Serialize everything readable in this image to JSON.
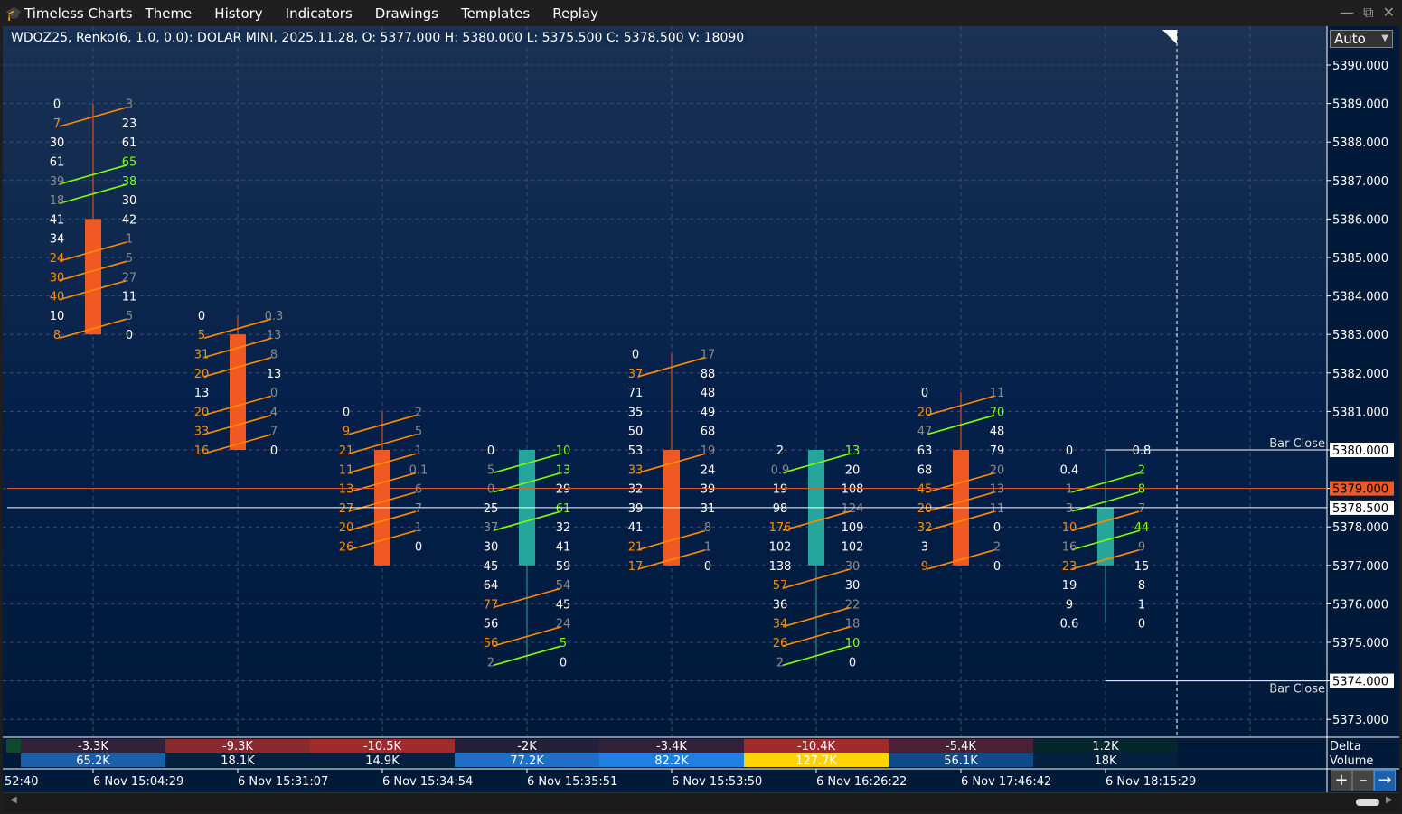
{
  "app": {
    "title": "Timeless Charts",
    "menu": [
      "Theme",
      "History",
      "Indicators",
      "Drawings",
      "Templates",
      "Replay"
    ]
  },
  "info": "WDOZ25, Renko(6, 1.0, 0.0): DOLAR MINI, 2025.11.28, O: 5377.000 H: 5380.000 L: 5375.500 C: 5378.500 V: 18090",
  "scale_mode": "Auto",
  "colors": {
    "bear": "#f05a22",
    "bull": "#26a69a",
    "bid_strong": "#ff8c00",
    "ask_strong": "#7fff00",
    "weak": "#8a8a8a",
    "normal": "#ffffff",
    "last_price": "#f05a22"
  },
  "price_axis": {
    "ticks": [
      "5390.000",
      "5389.000",
      "5388.000",
      "5387.000",
      "5386.000",
      "5385.000",
      "5384.000",
      "5383.000",
      "5382.000",
      "5381.000",
      "5380.000",
      "5379.000",
      "5378.000",
      "5377.000",
      "5376.000",
      "5375.000",
      "5374.000",
      "5373.000"
    ],
    "marker_high": "5380.000",
    "marker_last": "5379.000",
    "marker_close": "5378.500",
    "marker_low": "5374.000",
    "bar_close_label": "Bar Close"
  },
  "time_axis": {
    "first": "52:40",
    "labels": [
      "6 Nov 15:04:29",
      "6 Nov 15:31:07",
      "6 Nov 15:34:54",
      "6 Nov 15:35:51",
      "6 Nov 15:53:50",
      "6 Nov 16:26:22",
      "6 Nov 17:46:42",
      "6 Nov 18:15:29"
    ]
  },
  "panels": {
    "delta_label": "Delta",
    "volume_label": "Volume",
    "delta": [
      {
        "v": "-3.3K",
        "c": "#33213a"
      },
      {
        "v": "-9.3K",
        "c": "#8b2a2e"
      },
      {
        "v": "-10.5K",
        "c": "#a12a2c"
      },
      {
        "v": "-2K",
        "c": "#261f3a"
      },
      {
        "v": "-3.4K",
        "c": "#33213a"
      },
      {
        "v": "-10.4K",
        "c": "#a12a2c"
      },
      {
        "v": "-5.4K",
        "c": "#4a2035"
      },
      {
        "v": "1.2K",
        "c": "#06262e"
      }
    ],
    "volume": [
      {
        "v": "65.2K",
        "c": "#1a5fa8"
      },
      {
        "v": "18.1K",
        "c": "#03213f"
      },
      {
        "v": "14.9K",
        "c": "#03213f"
      },
      {
        "v": "77.2K",
        "c": "#1c70c8"
      },
      {
        "v": "82.2K",
        "c": "#1e80e0"
      },
      {
        "v": "127.7K",
        "c": "#ffd400"
      },
      {
        "v": "56.1K",
        "c": "#0f4a8a"
      },
      {
        "v": "18K",
        "c": "#03213f"
      }
    ]
  },
  "chart_data": {
    "type": "footprint",
    "price_range": [
      5373,
      5390
    ],
    "tick": 0.5,
    "last_price": 5379.0,
    "close_price": 5378.5,
    "bar_close_levels": [
      5380,
      5374
    ],
    "color_codes": {
      "w": "normal",
      "o": "bid_strong",
      "n": "ask_strong",
      "g": "weak"
    },
    "bars": [
      {
        "time": "6 Nov 15:04:29",
        "open": 5386,
        "close": 5383,
        "high": 5389,
        "low": 5383,
        "rows": [
          [
            "0",
            "3",
            "w",
            "g"
          ],
          [
            "7",
            "23",
            "o",
            "w"
          ],
          [
            "30",
            "61",
            "w",
            "w"
          ],
          [
            "61",
            "65",
            "w",
            "n"
          ],
          [
            "39",
            "38",
            "g",
            "n"
          ],
          [
            "18",
            "30",
            "g",
            "w"
          ],
          [
            "41",
            "42",
            "w",
            "w"
          ],
          [
            "34",
            "1",
            "w",
            "g"
          ],
          [
            "24",
            "5",
            "o",
            "g"
          ],
          [
            "30",
            "27",
            "o",
            "g"
          ],
          [
            "40",
            "11",
            "o",
            "w"
          ],
          [
            "10",
            "5",
            "w",
            "g"
          ],
          [
            "8",
            "0",
            "o",
            "w"
          ]
        ]
      },
      {
        "time": "6 Nov 15:31:07",
        "open": 5383,
        "close": 5380,
        "high": 5383.5,
        "low": 5380,
        "rows": [
          [
            "0",
            "0.3",
            "w",
            "g"
          ],
          [
            "5",
            "13",
            "o",
            "g"
          ],
          [
            "31",
            "8",
            "o",
            "g"
          ],
          [
            "20",
            "13",
            "o",
            "w"
          ],
          [
            "13",
            "0",
            "w",
            "g"
          ],
          [
            "20",
            "4",
            "o",
            "g"
          ],
          [
            "33",
            "7",
            "o",
            "g"
          ],
          [
            "16",
            "0",
            "o",
            "w"
          ]
        ]
      },
      {
        "time": "6 Nov 15:34:54",
        "open": 5380,
        "close": 5377,
        "high": 5381,
        "low": 5377,
        "rows": [
          [
            "0",
            "2",
            "w",
            "g"
          ],
          [
            "9",
            "5",
            "o",
            "g"
          ],
          [
            "21",
            "1",
            "o",
            "g"
          ],
          [
            "11",
            "0.1",
            "o",
            "g"
          ],
          [
            "13",
            "6",
            "o",
            "g"
          ],
          [
            "27",
            "7",
            "o",
            "g"
          ],
          [
            "20",
            "1",
            "o",
            "g"
          ],
          [
            "26",
            "0",
            "o",
            "w"
          ]
        ]
      },
      {
        "time": "6 Nov 15:35:51",
        "open": 5377,
        "close": 5380,
        "high": 5380,
        "low": 5374.5,
        "rows": [
          [
            "0",
            "10",
            "w",
            "n"
          ],
          [
            "5",
            "13",
            "g",
            "n"
          ],
          [
            "0",
            "29",
            "g",
            "w"
          ],
          [
            "25",
            "61",
            "w",
            "n"
          ],
          [
            "37",
            "32",
            "g",
            "w"
          ],
          [
            "30",
            "41",
            "w",
            "w"
          ],
          [
            "45",
            "59",
            "w",
            "w"
          ],
          [
            "64",
            "54",
            "w",
            "g"
          ],
          [
            "77",
            "45",
            "o",
            "w"
          ],
          [
            "56",
            "24",
            "w",
            "g"
          ],
          [
            "56",
            "5",
            "o",
            "n"
          ],
          [
            "2",
            "0",
            "g",
            "w"
          ]
        ]
      },
      {
        "time": "6 Nov 15:53:50",
        "open": 5380,
        "close": 5377,
        "high": 5382.5,
        "low": 5377,
        "rows": [
          [
            "0",
            "17",
            "w",
            "g"
          ],
          [
            "37",
            "88",
            "o",
            "w"
          ],
          [
            "71",
            "48",
            "w",
            "w"
          ],
          [
            "35",
            "49",
            "w",
            "w"
          ],
          [
            "50",
            "68",
            "w",
            "w"
          ],
          [
            "53",
            "19",
            "w",
            "g"
          ],
          [
            "33",
            "24",
            "o",
            "w"
          ],
          [
            "32",
            "39",
            "w",
            "w"
          ],
          [
            "39",
            "31",
            "w",
            "w"
          ],
          [
            "41",
            "8",
            "w",
            "g"
          ],
          [
            "21",
            "1",
            "o",
            "g"
          ],
          [
            "17",
            "0",
            "o",
            "w"
          ]
        ]
      },
      {
        "time": "6 Nov 16:26:22",
        "open": 5377,
        "close": 5380,
        "high": 5380,
        "low": 5374.5,
        "rows": [
          [
            "2",
            "13",
            "w",
            "n"
          ],
          [
            "0.9",
            "20",
            "g",
            "w"
          ],
          [
            "19",
            "108",
            "w",
            "w"
          ],
          [
            "98",
            "124",
            "w",
            "g"
          ],
          [
            "176",
            "109",
            "o",
            "w"
          ],
          [
            "102",
            "102",
            "w",
            "w"
          ],
          [
            "138",
            "30",
            "w",
            "g"
          ],
          [
            "57",
            "30",
            "o",
            "w"
          ],
          [
            "36",
            "22",
            "w",
            "g"
          ],
          [
            "34",
            "18",
            "o",
            "g"
          ],
          [
            "26",
            "10",
            "o",
            "n"
          ],
          [
            "2",
            "0",
            "g",
            "w"
          ]
        ]
      },
      {
        "time": "6 Nov 17:46:42",
        "open": 5380,
        "close": 5377,
        "high": 5381.5,
        "low": 5377,
        "rows": [
          [
            "0",
            "11",
            "w",
            "g"
          ],
          [
            "20",
            "70",
            "o",
            "n"
          ],
          [
            "47",
            "48",
            "g",
            "w"
          ],
          [
            "63",
            "79",
            "w",
            "w"
          ],
          [
            "68",
            "20",
            "w",
            "g"
          ],
          [
            "45",
            "13",
            "o",
            "g"
          ],
          [
            "20",
            "11",
            "o",
            "g"
          ],
          [
            "32",
            "0",
            "o",
            "w"
          ],
          [
            "3",
            "2",
            "w",
            "g"
          ],
          [
            "9",
            "0",
            "o",
            "w"
          ]
        ]
      },
      {
        "time": "6 Nov 18:15:29",
        "open": 5377,
        "close": 5378.5,
        "high": 5380,
        "low": 5375.5,
        "rows": [
          [
            "0",
            "0.8",
            "w",
            "w"
          ],
          [
            "0.4",
            "2",
            "w",
            "n"
          ],
          [
            "1",
            "8",
            "g",
            "n"
          ],
          [
            "3",
            "7",
            "g",
            "g"
          ],
          [
            "10",
            "44",
            "o",
            "n"
          ],
          [
            "16",
            "9",
            "g",
            "g"
          ],
          [
            "23",
            "15",
            "o",
            "w"
          ],
          [
            "19",
            "8",
            "w",
            "w"
          ],
          [
            "9",
            "1",
            "w",
            "w"
          ],
          [
            "0.6",
            "0",
            "w",
            "w"
          ]
        ]
      }
    ]
  }
}
